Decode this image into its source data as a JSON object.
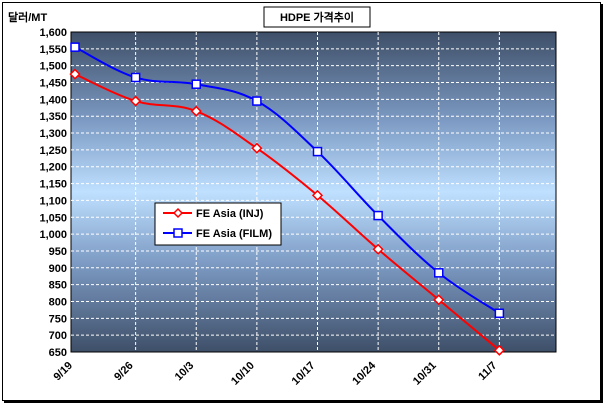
{
  "chart_data": {
    "type": "line",
    "title": "HDPE 가격추이",
    "ylabel": "달러/MT",
    "xlabel": "",
    "categories": [
      "9/19",
      "9/26",
      "10/3",
      "10/10",
      "10/17",
      "10/24",
      "10/31",
      "11/7"
    ],
    "ylim": [
      650,
      1600
    ],
    "ytick_step": 50,
    "y_tick_labels": [
      "650",
      "700",
      "750",
      "800",
      "850",
      "900",
      "950",
      "1,000",
      "1,050",
      "1,100",
      "1,150",
      "1,200",
      "1,250",
      "1,300",
      "1,350",
      "1,400",
      "1,450",
      "1,500",
      "1,550",
      "1,600"
    ],
    "grid": true,
    "legend_position": "left-center",
    "series": [
      {
        "name": "FE Asia (INJ)",
        "color": "#ff0000",
        "marker": "diamond",
        "values": [
          1475,
          1395,
          1365,
          1255,
          1115,
          955,
          805,
          655
        ]
      },
      {
        "name": "FE Asia (FILM)",
        "color": "#0000ff",
        "marker": "square",
        "values": [
          1555,
          1465,
          1445,
          1395,
          1245,
          1055,
          885,
          765
        ]
      }
    ]
  }
}
